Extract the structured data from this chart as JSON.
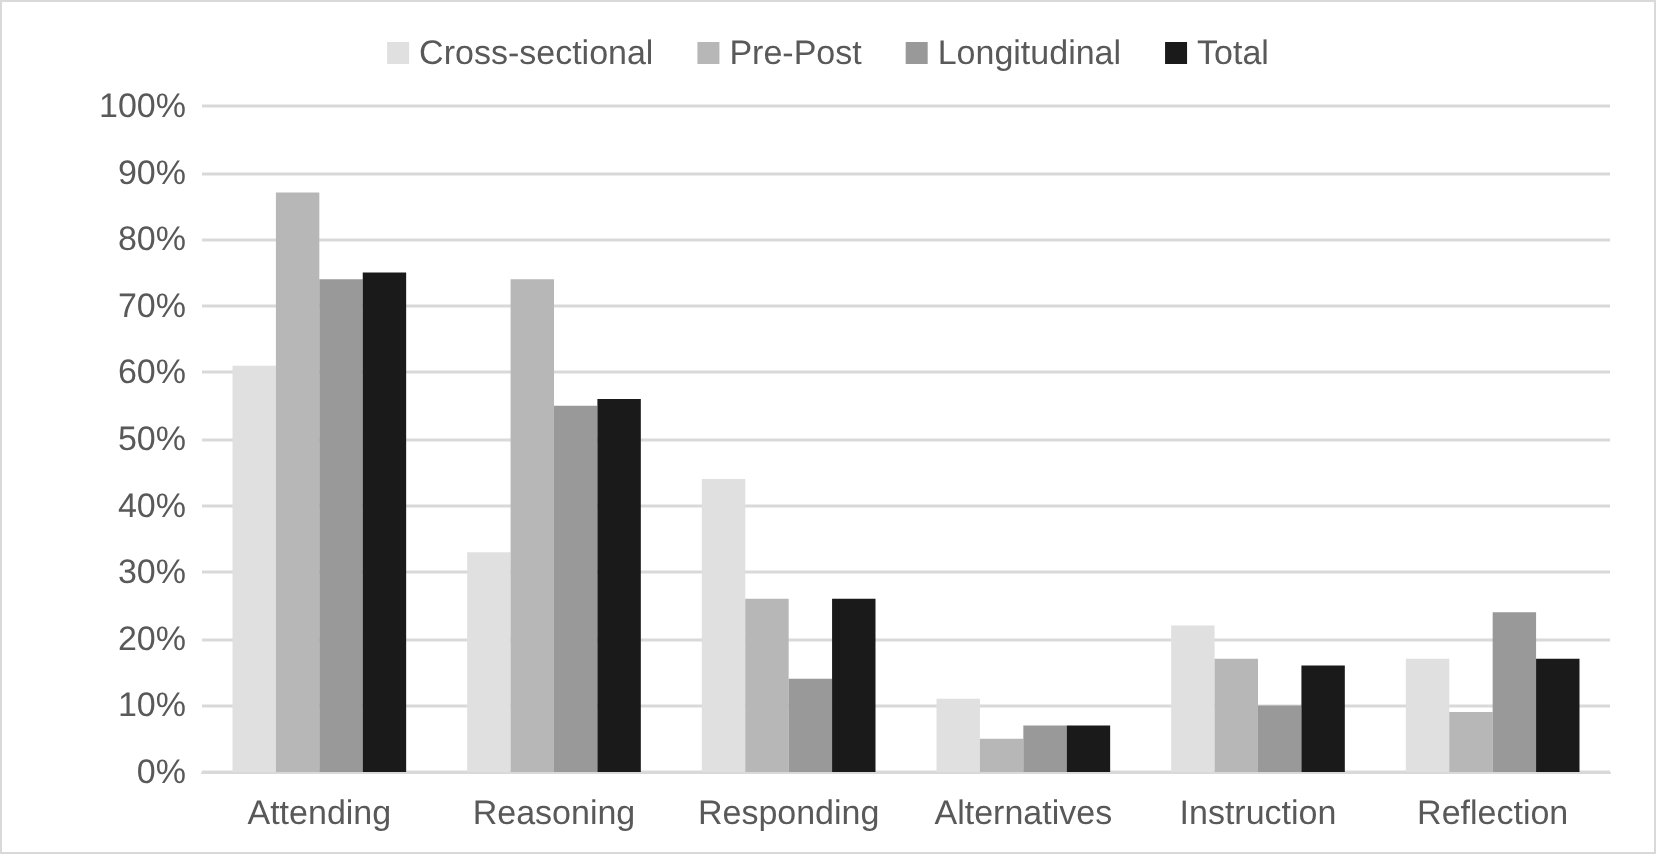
{
  "chart_data": {
    "type": "bar",
    "categories": [
      "Attending",
      "Reasoning",
      "Responding",
      "Alternatives",
      "Instruction",
      "Reflection"
    ],
    "series": [
      {
        "name": "Cross-sectional",
        "color": "#e0e0e0",
        "values": [
          61,
          33,
          44,
          11,
          22,
          17
        ]
      },
      {
        "name": "Pre-Post",
        "color": "#b7b7b7",
        "values": [
          87,
          74,
          26,
          5,
          17,
          9
        ]
      },
      {
        "name": "Longitudinal",
        "color": "#999999",
        "values": [
          74,
          55,
          14,
          7,
          10,
          24
        ]
      },
      {
        "name": "Total",
        "color": "#1a1a1a",
        "values": [
          75,
          56,
          26,
          7,
          16,
          17
        ]
      }
    ],
    "ylim": [
      0,
      100
    ],
    "yticks": [
      {
        "value": 0,
        "label": "0%"
      },
      {
        "value": 10,
        "label": "10%"
      },
      {
        "value": 20,
        "label": "20%"
      },
      {
        "value": 30,
        "label": "30%"
      },
      {
        "value": 40,
        "label": "40%"
      },
      {
        "value": 50,
        "label": "50%"
      },
      {
        "value": 60,
        "label": "60%"
      },
      {
        "value": 70,
        "label": "70%"
      },
      {
        "value": 80,
        "label": "80%"
      },
      {
        "value": 90,
        "label": "90%"
      },
      {
        "value": 100,
        "label": "100%"
      }
    ],
    "grid": "y",
    "legend": "top"
  }
}
